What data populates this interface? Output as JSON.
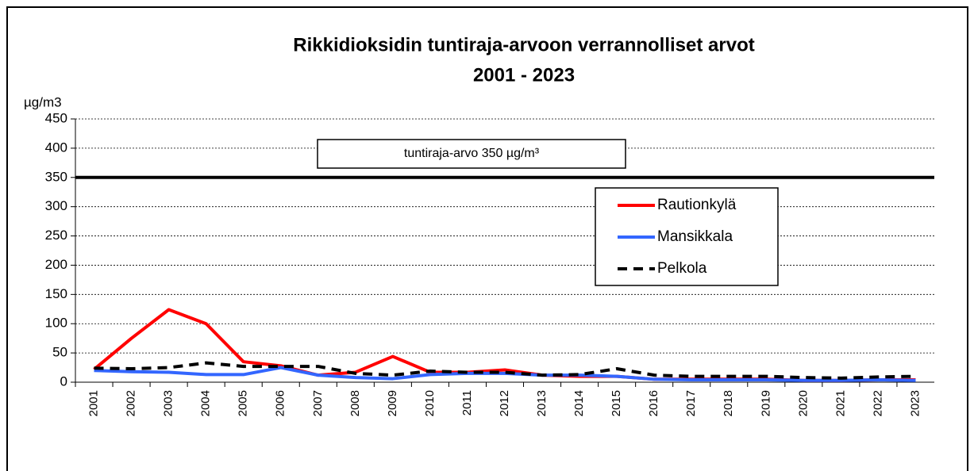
{
  "chart_data": {
    "type": "line",
    "title": "Rikkidioksidin tuntiraja-arvoon verrannolliset arvot",
    "subtitle": "2001 - 2023",
    "y_label": "µg/m3",
    "categories": [
      "2001",
      "2002",
      "2003",
      "2004",
      "2005",
      "2006",
      "2007",
      "2008",
      "2009",
      "2010",
      "2011",
      "2012",
      "2013",
      "2014",
      "2015",
      "2016",
      "2017",
      "2018",
      "2019",
      "2020",
      "2021",
      "2022",
      "2023"
    ],
    "series": [
      {
        "name": "Rautionkylä",
        "color": "#ff0000",
        "dash": false,
        "values": [
          22,
          75,
          124,
          100,
          35,
          28,
          12,
          17,
          44,
          17,
          17,
          21,
          12,
          10,
          10,
          5,
          5,
          5,
          5,
          3,
          3,
          4,
          4
        ]
      },
      {
        "name": "Mansikkala",
        "color": "#3366ff",
        "dash": false,
        "values": [
          20,
          18,
          17,
          13,
          13,
          25,
          12,
          8,
          6,
          13,
          15,
          15,
          12,
          12,
          10,
          5,
          4,
          4,
          4,
          3,
          3,
          4,
          3
        ]
      },
      {
        "name": "Pelkola",
        "color": "#000000",
        "dash": true,
        "values": [
          24,
          23,
          25,
          33,
          27,
          27,
          27,
          15,
          12,
          19,
          17,
          17,
          12,
          13,
          23,
          12,
          10,
          10,
          10,
          8,
          7,
          9,
          10
        ]
      }
    ],
    "threshold": 350,
    "annotation": "tuntiraja-arvo  350 µg/m³",
    "ylim": [
      0,
      450
    ],
    "yticks": [
      0,
      50,
      100,
      150,
      200,
      250,
      300,
      350,
      400,
      450
    ],
    "grid": true
  }
}
